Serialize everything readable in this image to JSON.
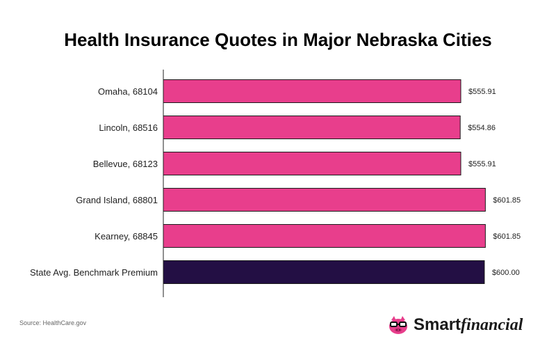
{
  "chart_data": {
    "type": "bar",
    "orientation": "horizontal",
    "title": "Health Insurance Quotes in Major Nebraska Cities",
    "categories": [
      "Omaha, 68104",
      "Lincoln, 68516",
      "Bellevue, 68123",
      "Grand Island, 68801",
      "Kearney, 68845",
      "State Avg. Benchmark Premium"
    ],
    "values": [
      555.91,
      554.86,
      555.91,
      601.85,
      601.85,
      600.0
    ],
    "value_labels": [
      "$555.91",
      "$554.86",
      "$555.91",
      "$601.85",
      "$601.85",
      "$600.00"
    ],
    "bar_colors": [
      "#e83e8c",
      "#e83e8c",
      "#e83e8c",
      "#e83e8c",
      "#e83e8c",
      "#230f44"
    ],
    "xlim": [
      0,
      640
    ],
    "grid": false,
    "xaxis_visible": false
  },
  "footer": {
    "source": "Source: HealthCare.gov",
    "brand_smart": "Smart",
    "brand_financial": "financial",
    "brand_icon": "pig-with-glasses-icon"
  }
}
